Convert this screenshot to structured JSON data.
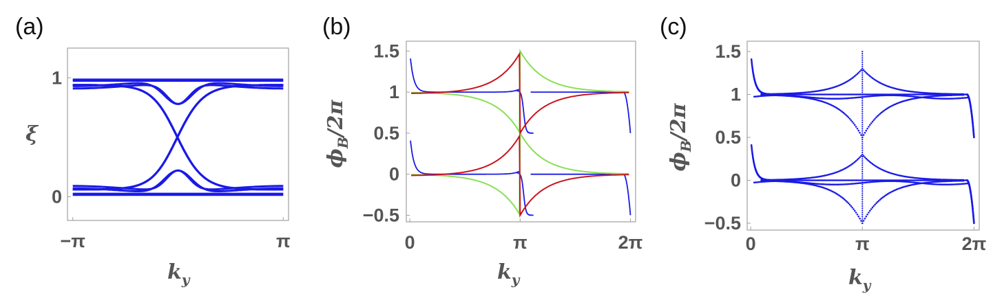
{
  "chart_data": [
    {
      "panel": "(a)",
      "type": "line",
      "xlabel": "k_y",
      "ylabel": "ξ",
      "xticks": [
        {
          "v": -3.14159,
          "label": "−π"
        },
        {
          "v": 3.14159,
          "label": "π"
        }
      ],
      "yticks": [
        {
          "v": 0,
          "label": "0"
        },
        {
          "v": 1,
          "label": "1"
        }
      ],
      "xlim": [
        -3.3,
        3.3
      ],
      "ylim": [
        -0.2,
        1.25
      ],
      "colors": {
        "bands": "#1a1ae6"
      },
      "series": [
        {
          "kind": "const",
          "v": 0.985
        },
        {
          "kind": "const",
          "v": 0.015
        },
        {
          "kind": "const",
          "v": 0.975
        },
        {
          "kind": "const",
          "v": 0.025
        },
        {
          "kind": "cross",
          "a": 0.04
        },
        {
          "kind": "cross",
          "a": 0.035
        },
        {
          "kind": "cross",
          "a": 0.03
        },
        {
          "kind": "avoid",
          "a": 0.95,
          "b": 0.24,
          "w": 0.55
        },
        {
          "kind": "avoid",
          "a": 0.93,
          "b": 0.24,
          "w": 0.45
        }
      ]
    },
    {
      "panel": "(b)",
      "type": "line",
      "xlabel": "k_y",
      "ylabel": "ϕ_B/2π",
      "xticks": [
        {
          "v": 0,
          "label": "0"
        },
        {
          "v": 3.14159,
          "label": "π"
        },
        {
          "v": 6.28318,
          "label": "2π"
        }
      ],
      "yticks": [
        {
          "v": -0.5,
          "label": "−0.5"
        },
        {
          "v": 0,
          "label": "0"
        },
        {
          "v": 0.5,
          "label": "0.5"
        },
        {
          "v": 1,
          "label": "1"
        },
        {
          "v": 1.5,
          "label": "1.5"
        }
      ],
      "xlim": [
        -0.1,
        6.43
      ],
      "ylim": [
        -0.58,
        1.62
      ],
      "colors": {
        "blue": "#1a1ae6",
        "green": "#88e055",
        "red": "#c8141e"
      },
      "series": [
        {
          "name": "blue",
          "kind": "blue",
          "color": "blue"
        },
        {
          "name": "green",
          "kind": "cusp",
          "color": "green",
          "sign": -1
        },
        {
          "name": "red",
          "kind": "cusp",
          "color": "red",
          "sign": 1
        }
      ]
    },
    {
      "panel": "(c)",
      "type": "scatter",
      "xlabel": "k_y",
      "ylabel": "ϕ_B/2π",
      "xticks": [
        {
          "v": 0,
          "label": "0"
        },
        {
          "v": 3.14159,
          "label": "π"
        },
        {
          "v": 6.28318,
          "label": "2π"
        }
      ],
      "yticks": [
        {
          "v": -0.5,
          "label": "−0.5"
        },
        {
          "v": 0,
          "label": "0"
        },
        {
          "v": 0.5,
          "label": "0.5"
        },
        {
          "v": 1,
          "label": "1"
        },
        {
          "v": 1.5,
          "label": "1.5"
        }
      ],
      "xlim": [
        -0.1,
        6.43
      ],
      "ylim": [
        -0.58,
        1.62
      ],
      "colors": {
        "points": "#1a1ae6"
      },
      "series": [
        {
          "kind": "blue"
        },
        {
          "kind": "cusp",
          "sign": 1,
          "amp": 0.3
        },
        {
          "kind": "cusp",
          "sign": -1,
          "amp": 0.5
        }
      ]
    }
  ]
}
